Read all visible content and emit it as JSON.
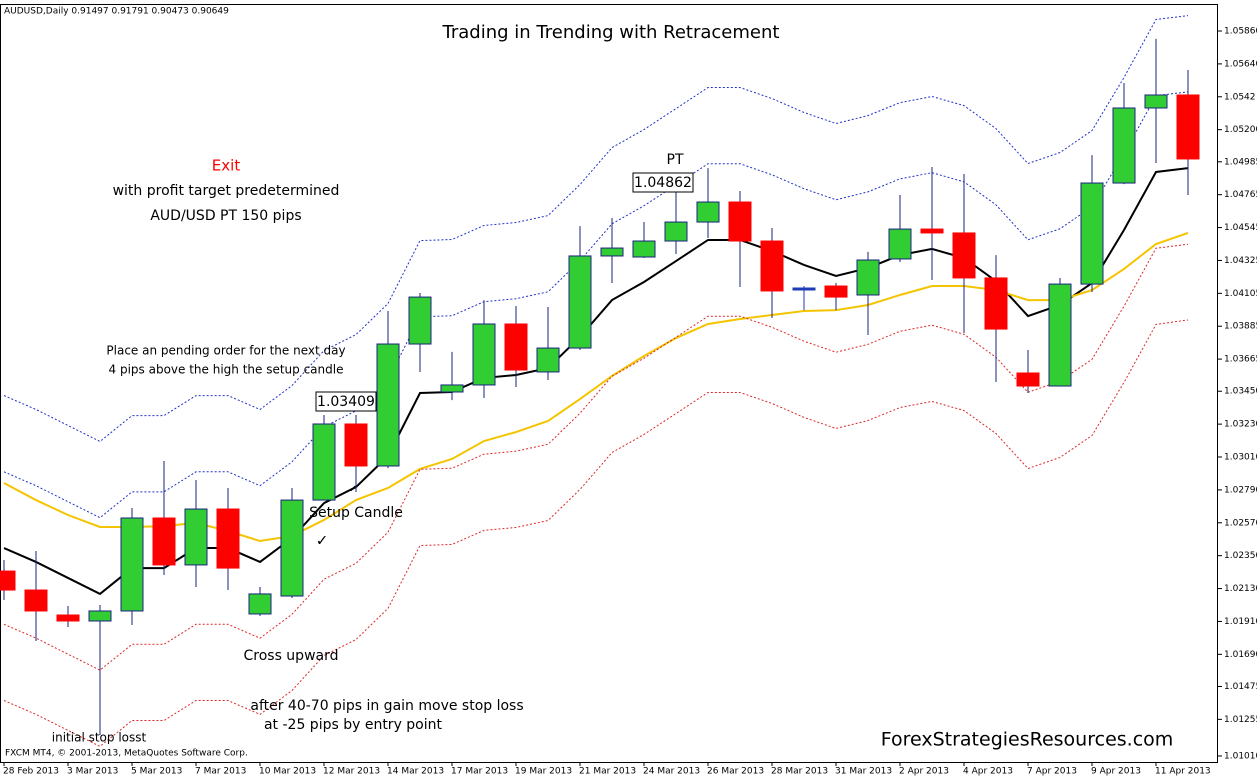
{
  "chart_data": {
    "type": "candlestick",
    "header": "AUDUSD,Daily  0.91497 0.91791 0.90473 0.90649",
    "title": "Trading in Trending with Retracement",
    "categories": [
      "28 Feb 2013",
      null,
      "3 Mar 2013",
      null,
      "5 Mar 2013",
      null,
      "7 Mar 2013",
      null,
      "10 Mar 2013",
      null,
      "12 Mar 2013",
      null,
      "14 Mar 2013",
      null,
      "17 Mar 2013",
      null,
      "19 Mar 2013",
      null,
      "21 Mar 2013",
      null,
      "24 Mar 2013",
      null,
      "26 Mar 2013",
      null,
      "28 Mar 2013",
      null,
      "31 Mar 2013",
      null,
      "2 Apr 2013",
      null,
      "4 Apr 2013",
      null,
      "7 Apr 2013",
      null,
      "9 Apr 2013",
      null,
      "11 Apr 2013",
      null
    ],
    "open": [
      1.02247,
      1.0212,
      1.01953,
      1.01913,
      1.0198,
      1.02602,
      1.02288,
      1.02662,
      1.0196,
      1.0208,
      1.02722,
      1.03231,
      1.0295,
      1.03766,
      1.03445,
      1.03492,
      1.039,
      1.03579,
      1.03739,
      1.04355,
      1.04348,
      1.04455,
      1.04582,
      1.04716,
      1.04455,
      1.04134,
      1.04154,
      1.04094,
      1.04335,
      1.04535,
      1.04509,
      1.04208,
      1.03572,
      1.03485,
      1.04167,
      1.04843,
      1.05345,
      1.05432
    ],
    "high": [
      1.02321,
      1.02381,
      1.02013,
      1.0202,
      1.02669,
      1.02983,
      1.02856,
      1.02803,
      1.0214,
      1.02803,
      1.03291,
      1.03291,
      1.03987,
      1.04107,
      1.03713,
      1.0406,
      1.0402,
      1.04014,
      1.04555,
      1.04609,
      1.04582,
      1.04796,
      1.04943,
      1.0479,
      1.04542,
      1.04154,
      1.04174,
      1.04382,
      1.04763,
      1.0495,
      1.04903,
      1.04361,
      1.03726,
      1.04208,
      1.0503,
      1.05512,
      1.05807,
      1.05599
    ],
    "low": [
      1.02053,
      1.01779,
      1.01873,
      1.0115,
      1.01886,
      1.02221,
      1.0214,
      1.0212,
      1.01946,
      1.02067,
      1.02722,
      1.02776,
      1.02936,
      1.03579,
      1.03391,
      1.03405,
      1.03478,
      1.03525,
      1.03726,
      1.04174,
      1.04341,
      1.04368,
      1.04475,
      1.04147,
      1.0394,
      1.03993,
      1.03993,
      1.03826,
      1.04315,
      1.04194,
      1.0384,
      1.03512,
      1.03438,
      1.03485,
      1.04114,
      1.04836,
      1.04977,
      1.04763
    ],
    "close": [
      1.0212,
      1.0198,
      1.01913,
      1.0198,
      1.02602,
      1.02288,
      1.02662,
      1.02267,
      1.02094,
      1.02722,
      1.03231,
      1.0295,
      1.03766,
      1.0408,
      1.03492,
      1.039,
      1.03592,
      1.03739,
      1.04355,
      1.04408,
      1.04455,
      1.04582,
      1.04716,
      1.04455,
      1.04121,
      1.04134,
      1.0408,
      1.04328,
      1.04535,
      1.04509,
      1.04208,
      1.03866,
      1.03485,
      1.04167,
      1.04843,
      1.05345,
      1.05432,
      1.05004
    ],
    "up_color": "#32cd32",
    "down_color": "#ff0000",
    "doji_color": "#1e3cb4",
    "candle_border": "#1a237e",
    "lines": [
      {
        "color": "#000000",
        "dash": false,
        "values": [
          1.02401,
          1.02308,
          1.02201,
          1.02094,
          1.02267,
          1.02267,
          1.02401,
          1.02401,
          1.02308,
          1.02468,
          1.02702,
          1.02809,
          1.03017,
          1.03438,
          1.03445,
          1.03539,
          1.03559,
          1.03605,
          1.03813,
          1.0406,
          1.04181,
          1.04321,
          1.04462,
          1.04462,
          1.04388,
          1.04295,
          1.04221,
          1.04274,
          1.04361,
          1.04402,
          1.04341,
          1.04187,
          1.03953,
          1.04027,
          1.04174,
          1.04529,
          1.04917,
          1.04943
        ]
      },
      {
        "color": "#f5c400",
        "dash": false,
        "values": [
          1.02836,
          1.02722,
          1.02622,
          1.02542,
          1.02542,
          1.02548,
          1.02569,
          1.02515,
          1.02448,
          1.02482,
          1.02589,
          1.02722,
          1.02803,
          1.0293,
          1.02997,
          1.03117,
          1.03177,
          1.03251,
          1.03398,
          1.03552,
          1.03686,
          1.03806,
          1.039,
          1.03933,
          1.0396,
          1.03987,
          1.03993,
          1.04027,
          1.04094,
          1.04154,
          1.04154,
          1.04127,
          1.0406,
          1.0406,
          1.04127,
          1.04268,
          1.04435,
          1.04509
        ]
      },
      {
        "color": "#1e32c8",
        "dash": true,
        "values": [
          1.03421,
          1.03328,
          1.03221,
          1.03114,
          1.03287,
          1.03287,
          1.03421,
          1.03421,
          1.03328,
          1.03488,
          1.03722,
          1.03829,
          1.04037,
          1.04458,
          1.04465,
          1.04559,
          1.04579,
          1.04625,
          1.04833,
          1.0508,
          1.05201,
          1.05341,
          1.05482,
          1.05482,
          1.05408,
          1.05315,
          1.05241,
          1.05294,
          1.05381,
          1.05422,
          1.05361,
          1.05207,
          1.04973,
          1.05047,
          1.05194,
          1.05549,
          1.05937,
          1.05963
        ]
      },
      {
        "color": "#1e32c8",
        "dash": true,
        "values": [
          1.02911,
          1.02818,
          1.02711,
          1.02604,
          1.02777,
          1.02777,
          1.02911,
          1.02911,
          1.02818,
          1.02978,
          1.03212,
          1.03319,
          1.03527,
          1.03948,
          1.03955,
          1.04049,
          1.04069,
          1.04115,
          1.04323,
          1.0457,
          1.04691,
          1.04831,
          1.04972,
          1.04972,
          1.04898,
          1.04805,
          1.04731,
          1.04784,
          1.04871,
          1.04912,
          1.04851,
          1.04697,
          1.04463,
          1.04537,
          1.04684,
          1.05039,
          1.05427,
          1.05453
        ]
      },
      {
        "color": "#dc2828",
        "dash": true,
        "values": [
          1.01891,
          1.01798,
          1.01691,
          1.01584,
          1.01757,
          1.01757,
          1.01891,
          1.01891,
          1.01798,
          1.01958,
          1.02192,
          1.02299,
          1.02507,
          1.02928,
          1.02935,
          1.03029,
          1.03049,
          1.03095,
          1.03303,
          1.0355,
          1.03671,
          1.03811,
          1.03952,
          1.03952,
          1.03878,
          1.03785,
          1.03711,
          1.03764,
          1.03851,
          1.03892,
          1.03831,
          1.03677,
          1.03443,
          1.03517,
          1.03664,
          1.04019,
          1.04407,
          1.04433
        ]
      },
      {
        "color": "#dc2828",
        "dash": true,
        "values": [
          1.01381,
          1.01288,
          1.01181,
          1.01074,
          1.01247,
          1.01247,
          1.01381,
          1.01381,
          1.01288,
          1.01448,
          1.01682,
          1.01789,
          1.01997,
          1.02418,
          1.02425,
          1.02519,
          1.02539,
          1.02585,
          1.02793,
          1.0304,
          1.03161,
          1.03301,
          1.03442,
          1.03442,
          1.03368,
          1.03275,
          1.03201,
          1.03254,
          1.03341,
          1.03382,
          1.03321,
          1.03167,
          1.02933,
          1.03007,
          1.03154,
          1.03509,
          1.03897,
          1.03927
        ]
      }
    ],
    "ylim": [
      1.00983,
      1.06034
    ],
    "yticks": [
      {
        "value": 1.0586,
        "label": "1.05860"
      },
      {
        "value": 1.0564,
        "label": "1.05640"
      },
      1.0542,
      {
        "value": 1.052,
        "label": "1.05200"
      },
      1.04985,
      1.04765,
      1.04545,
      1.04325,
      1.04105,
      1.03885,
      1.03665,
      {
        "value": 1.0345,
        "label": "1.03450"
      },
      {
        "value": 1.0323,
        "label": "1.03230"
      },
      {
        "value": 1.0301,
        "label": "1.03010"
      },
      {
        "value": 1.0279,
        "label": "1.02790"
      },
      {
        "value": 1.0257,
        "label": "1.02570"
      },
      {
        "value": 1.0235,
        "label": "1.02350"
      },
      {
        "value": 1.0213,
        "label": "1.02130"
      },
      {
        "value": 1.0191,
        "label": "1.01910"
      },
      {
        "value": 1.0169,
        "label": "1.01690"
      },
      1.01475,
      1.01255,
      {
        "value": 1.0101,
        "label": "1.01010"
      }
    ],
    "annotations": [
      "Exit",
      "with profit target predetermined",
      "AUD/USD PT  150  pips",
      "PT",
      "1.04862",
      "1.03409",
      "Place an pending order for the next day",
      "4 pips above the high the setup candle",
      "Setup Candle",
      "✓",
      "✓",
      "Cross upward",
      "after 40-70 pips in gain move stop loss",
      "at -25 pips by entry point",
      "initial stop losst"
    ],
    "watermark": "ForexStrategiesResources.com",
    "copyright": "FXCM MT4, © 2001-2013, MetaQuotes Software Corp."
  }
}
